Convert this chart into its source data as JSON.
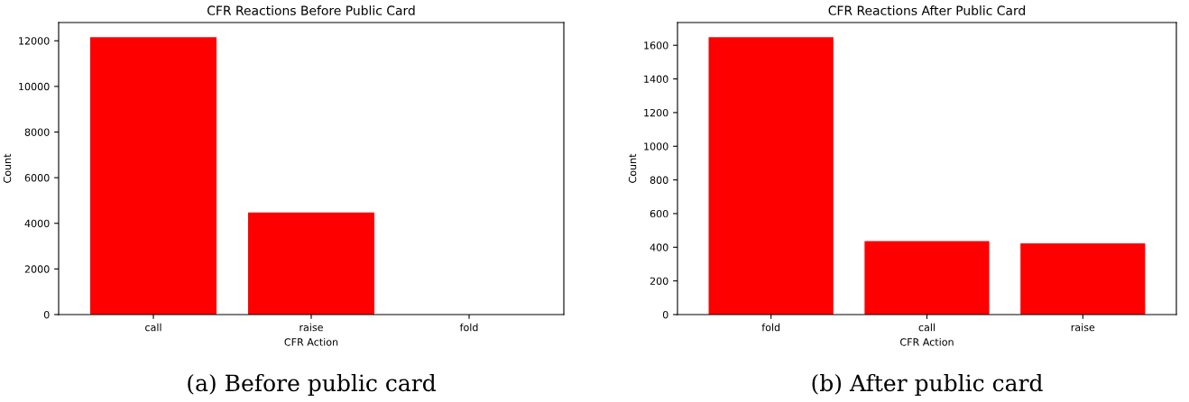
{
  "chart_data": [
    {
      "type": "bar",
      "title": "CFR Reactions Before Public Card",
      "xlabel": "CFR Action",
      "ylabel": "Count",
      "categories": [
        "call",
        "raise",
        "fold"
      ],
      "values": [
        12160,
        4470,
        0
      ],
      "color": "#ff0000",
      "ylim": [
        0,
        12800
      ],
      "yticks": [
        0,
        2000,
        4000,
        6000,
        8000,
        10000,
        12000
      ],
      "grid": false,
      "annotations": [
        "(a) Before public card"
      ]
    },
    {
      "type": "bar",
      "title": "CFR Reactions After Public Card",
      "xlabel": "CFR Action",
      "ylabel": "Count",
      "categories": [
        "fold",
        "call",
        "raise"
      ],
      "values": [
        1648,
        436,
        423
      ],
      "color": "#ff0000",
      "ylim": [
        0,
        1735
      ],
      "yticks": [
        0,
        200,
        400,
        600,
        800,
        1000,
        1200,
        1400,
        1600
      ],
      "grid": false,
      "annotations": [
        "(b) After public card"
      ]
    }
  ]
}
